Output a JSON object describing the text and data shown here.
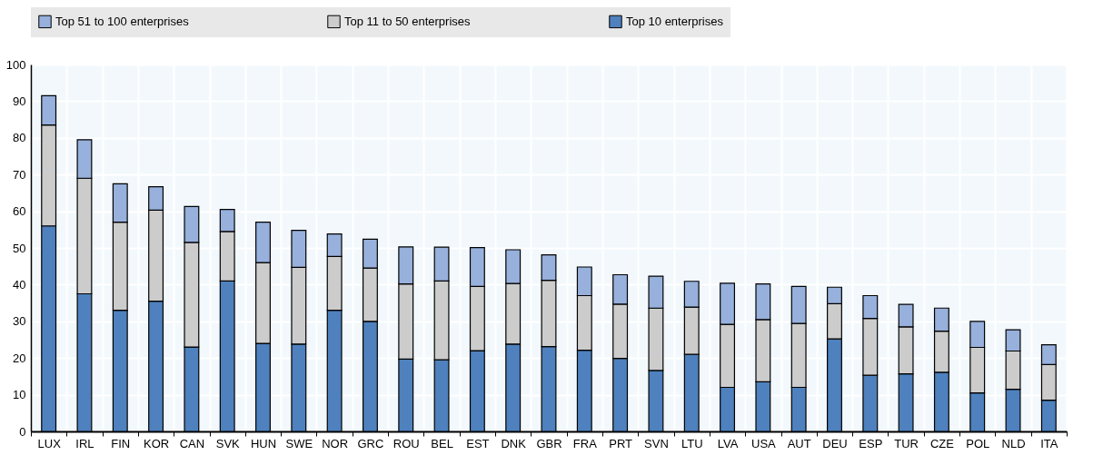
{
  "chart_data": {
    "type": "bar",
    "stacked": true,
    "grid": true,
    "legend": "top",
    "categories": [
      "LUX",
      "IRL",
      "FIN",
      "KOR",
      "CAN",
      "SVK",
      "HUN",
      "SWE",
      "NOR",
      "GRC",
      "ROU",
      "BEL",
      "EST",
      "DNK",
      "GBR",
      "FRA",
      "PRT",
      "SVN",
      "LTU",
      "LVA",
      "USA",
      "AUT",
      "DEU",
      "ESP",
      "TUR",
      "CZE",
      "POL",
      "NLD",
      "ITA"
    ],
    "series": [
      {
        "name": "Top 10 enterprises",
        "color": "#4e81bd",
        "values": [
          56,
          37.5,
          33,
          35.5,
          23,
          41,
          24,
          23.8,
          33,
          30,
          19.7,
          19.5,
          22,
          23.8,
          23.1,
          22.1,
          19.9,
          16.6,
          21,
          12,
          13.5,
          12,
          25.2,
          15.3,
          15.7,
          16.1,
          10.5,
          11.5,
          8.5
        ]
      },
      {
        "name": "Top 11 to 50 enterprises",
        "color": "#cccccc",
        "values": [
          27.5,
          31.5,
          24,
          24.8,
          28.5,
          13.5,
          22,
          20.9,
          14.7,
          14.5,
          20.5,
          21.5,
          17.5,
          16.5,
          18.1,
          14.9,
          14.8,
          17,
          12.9,
          17.2,
          17,
          17.4,
          9.6,
          15.5,
          12.8,
          11.2,
          12.4,
          10.4,
          9.7
        ]
      },
      {
        "name": "Top 51 to 100 enterprises",
        "color": "#97b0dc",
        "values": [
          8,
          10.5,
          10.5,
          6.4,
          9.8,
          6,
          11,
          10.1,
          6.1,
          7.9,
          10.1,
          9.2,
          10.6,
          9.2,
          6.9,
          7.8,
          8,
          8.7,
          7,
          11.2,
          9.7,
          10.1,
          4.5,
          6.2,
          6.1,
          6.3,
          7.1,
          5.8,
          5.4
        ]
      }
    ],
    "ylim": [
      0,
      100
    ],
    "yticks": [
      0,
      10,
      20,
      30,
      40,
      50,
      60,
      70,
      80,
      90,
      100
    ]
  }
}
